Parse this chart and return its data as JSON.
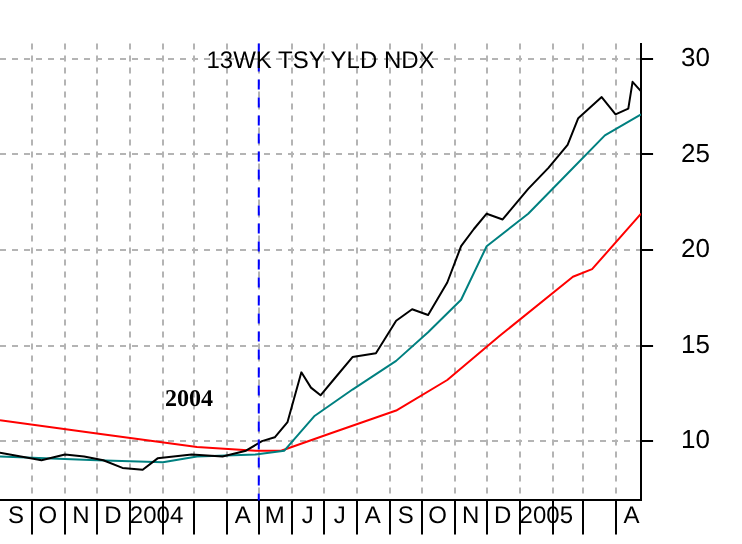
{
  "chart_data": {
    "type": "line",
    "title": "13WK TSY YLD NDX",
    "annotations": [
      "2004"
    ],
    "series": [
      {
        "color": "#000000",
        "x": [
          "2003-09-01",
          "2003-10-10",
          "2003-11-01",
          "2003-11-19",
          "2003-12-07",
          "2003-12-25",
          "2004-01-13",
          "2004-01-27",
          "2004-02-28",
          "2004-03-28",
          "2004-04-19",
          "2004-05-04",
          "2004-05-16",
          "2004-05-28",
          "2004-06-10",
          "2004-06-19",
          "2004-06-28",
          "2004-07-10",
          "2004-07-28",
          "2004-08-19",
          "2004-09-07",
          "2004-09-22",
          "2004-10-07",
          "2004-10-25",
          "2004-11-07",
          "2004-11-19",
          "2004-12-01",
          "2004-12-16",
          "2004-12-28",
          "2005-01-09",
          "2005-01-28",
          "2005-02-15",
          "2005-02-25",
          "2005-03-19",
          "2005-04-01",
          "2005-04-13",
          "2005-04-17",
          "2005-04-25"
        ],
        "values": [
          9.4,
          9.0,
          9.3,
          9.2,
          9.0,
          8.6,
          8.5,
          9.1,
          9.3,
          9.2,
          9.5,
          10.0,
          10.2,
          11.0,
          13.6,
          12.8,
          12.4,
          13.2,
          14.4,
          14.6,
          16.3,
          16.9,
          16.6,
          18.3,
          20.2,
          21.1,
          21.9,
          21.6,
          22.4,
          23.2,
          24.3,
          25.5,
          26.9,
          28.0,
          27.1,
          27.4,
          28.8,
          28.3
        ]
      },
      {
        "color": "#008080",
        "x": [
          "2003-09-01",
          "2003-12-01",
          "2004-02-01",
          "2004-03-04",
          "2004-04-28",
          "2004-05-25",
          "2004-06-22",
          "2004-07-28",
          "2004-09-07",
          "2004-10-07",
          "2004-11-07",
          "2004-12-01",
          "2005-01-09",
          "2005-02-15",
          "2005-03-22",
          "2005-04-25"
        ],
        "values": [
          9.2,
          9.0,
          8.9,
          9.2,
          9.3,
          9.5,
          11.3,
          12.7,
          14.2,
          15.7,
          17.4,
          20.2,
          21.9,
          24.0,
          26.0,
          27.1
        ]
      },
      {
        "color": "#ff0000",
        "x": [
          "2003-09-01",
          "2003-12-01",
          "2004-03-04",
          "2004-04-28",
          "2004-05-22",
          "2004-07-07",
          "2004-09-07",
          "2004-10-25",
          "2004-12-13",
          "2005-02-20",
          "2005-03-10",
          "2005-04-25"
        ],
        "values": [
          11.1,
          10.4,
          9.7,
          9.5,
          9.5,
          10.4,
          11.6,
          13.2,
          15.5,
          18.6,
          19.0,
          21.9
        ]
      }
    ],
    "xlim": [
      "2003-09-01",
      "2005-04-25"
    ],
    "xticks": [
      {
        "value": "2003-09-16",
        "label": "S"
      },
      {
        "value": "2003-10-01",
        "label": null
      },
      {
        "value": "2003-10-16",
        "label": "O"
      },
      {
        "value": "2003-11-01",
        "label": null
      },
      {
        "value": "2003-11-16",
        "label": "N"
      },
      {
        "value": "2003-12-01",
        "label": null
      },
      {
        "value": "2003-12-16",
        "label": "D"
      },
      {
        "value": "2004-01-01",
        "label": null
      },
      {
        "value": "2004-01-26",
        "label": "2004"
      },
      {
        "value": "2004-02-01",
        "label": null
      },
      {
        "value": "2004-03-01",
        "label": null
      },
      {
        "value": "2004-04-01",
        "label": null
      },
      {
        "value": "2004-04-16",
        "label": "A"
      },
      {
        "value": "2004-05-01",
        "label": null
      },
      {
        "value": "2004-05-16",
        "label": "M"
      },
      {
        "value": "2004-06-01",
        "label": null
      },
      {
        "value": "2004-06-16",
        "label": "J"
      },
      {
        "value": "2004-07-01",
        "label": null
      },
      {
        "value": "2004-07-16",
        "label": "J"
      },
      {
        "value": "2004-08-01",
        "label": null
      },
      {
        "value": "2004-08-16",
        "label": "A"
      },
      {
        "value": "2004-09-01",
        "label": null
      },
      {
        "value": "2004-09-16",
        "label": "S"
      },
      {
        "value": "2004-10-01",
        "label": null
      },
      {
        "value": "2004-10-16",
        "label": "O"
      },
      {
        "value": "2004-11-01",
        "label": null
      },
      {
        "value": "2004-11-16",
        "label": "N"
      },
      {
        "value": "2004-12-01",
        "label": null
      },
      {
        "value": "2004-12-16",
        "label": "D"
      },
      {
        "value": "2005-01-01",
        "label": null
      },
      {
        "value": "2005-01-26",
        "label": "2005"
      },
      {
        "value": "2005-02-01",
        "label": null
      },
      {
        "value": "2005-03-01",
        "label": null
      },
      {
        "value": "2005-04-01",
        "label": null
      },
      {
        "value": "2005-04-16",
        "label": "A"
      }
    ],
    "ylim": [
      6.9,
      30.8
    ],
    "yticks": [
      10,
      15,
      20,
      25,
      30
    ],
    "ref_lines": [
      {
        "axis": "x",
        "value": "2004-05-01",
        "color": "#0000ff",
        "line_style": "dashed"
      }
    ],
    "grid": true,
    "marker": "none",
    "line_style": "solid"
  }
}
